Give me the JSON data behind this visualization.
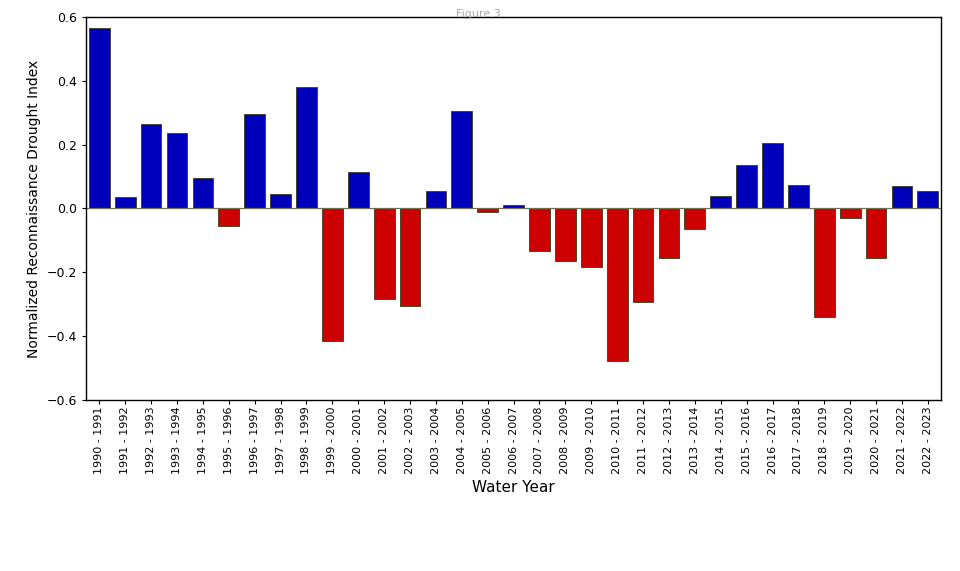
{
  "categories": [
    "1990 - 1991",
    "1991 - 1992",
    "1992 - 1993",
    "1993 - 1994",
    "1994 - 1995",
    "1995 - 1996",
    "1996 - 1997",
    "1997 - 1998",
    "1998 - 1999",
    "1999 - 2000",
    "2000 - 2001",
    "2001 - 2002",
    "2002 - 2003",
    "2003 - 2004",
    "2004 - 2005",
    "2005 - 2006",
    "2006 - 2007",
    "2007 - 2008",
    "2008 - 2009",
    "2009 - 2010",
    "2010 - 2011",
    "2011 - 2012",
    "2012 - 2013",
    "2013 - 2014",
    "2014 - 2015",
    "2015 - 2016",
    "2016 - 2017",
    "2017 - 2018",
    "2018 - 2019",
    "2019 - 2020",
    "2020 - 2021",
    "2021 - 2022",
    "2022 - 2023"
  ],
  "values": [
    0.565,
    0.035,
    0.265,
    0.235,
    0.095,
    -0.055,
    0.295,
    0.045,
    0.38,
    -0.415,
    0.115,
    -0.285,
    -0.305,
    0.055,
    0.305,
    -0.01,
    0.01,
    -0.135,
    -0.165,
    -0.185,
    -0.48,
    -0.295,
    -0.155,
    -0.065,
    0.04,
    0.135,
    0.205,
    0.075,
    -0.34,
    -0.03,
    -0.155,
    0.07,
    0.055
  ],
  "title": "Figure 3.",
  "xlabel": "Water Year",
  "ylabel": "Normalized Reconnaissance Drought Index",
  "ylim": [
    -0.6,
    0.6
  ],
  "yticks": [
    -0.6,
    -0.4,
    -0.2,
    0.0,
    0.2,
    0.4,
    0.6
  ],
  "positive_color": "#0000bb",
  "negative_color": "#cc0000",
  "bar_edge_color": "#3a3a1a",
  "background_color": "#ffffff",
  "zero_line_color": "#707050",
  "title_color": "#aaaaaa",
  "xlabel_fontsize": 11,
  "ylabel_fontsize": 10,
  "tick_labelsize": 8,
  "ytick_labelsize": 9
}
